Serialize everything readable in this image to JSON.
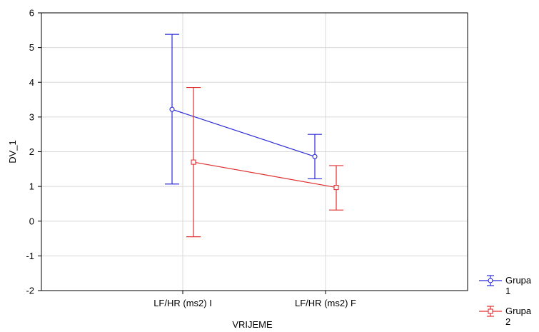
{
  "chart_data": {
    "type": "line",
    "xlabel": "VRIJEME",
    "ylabel": "DV_1",
    "ylim": [
      -2,
      6
    ],
    "yticks": [
      "-2",
      "-1",
      "0",
      "1",
      "2",
      "3",
      "4",
      "5",
      "6"
    ],
    "categories": [
      "LF/HR (ms2) I",
      "LF/HR (ms2) F"
    ],
    "grid": true,
    "legend_position": "bottom-right outside",
    "series": [
      {
        "name": "Grupa 1",
        "name_line1": "Grupa",
        "name_line2": "1",
        "color": "#2b2bd8",
        "marker": "circle",
        "values": [
          3.22,
          1.86
        ],
        "lower": [
          1.07,
          1.22
        ],
        "upper": [
          5.38,
          2.5
        ]
      },
      {
        "name": "Grupa 2",
        "name_line1": "Grupa",
        "name_line2": "2",
        "color": "#e03030",
        "marker": "square",
        "values": [
          1.7,
          0.97
        ],
        "lower": [
          -0.45,
          0.32
        ],
        "upper": [
          3.85,
          1.6
        ]
      }
    ]
  }
}
